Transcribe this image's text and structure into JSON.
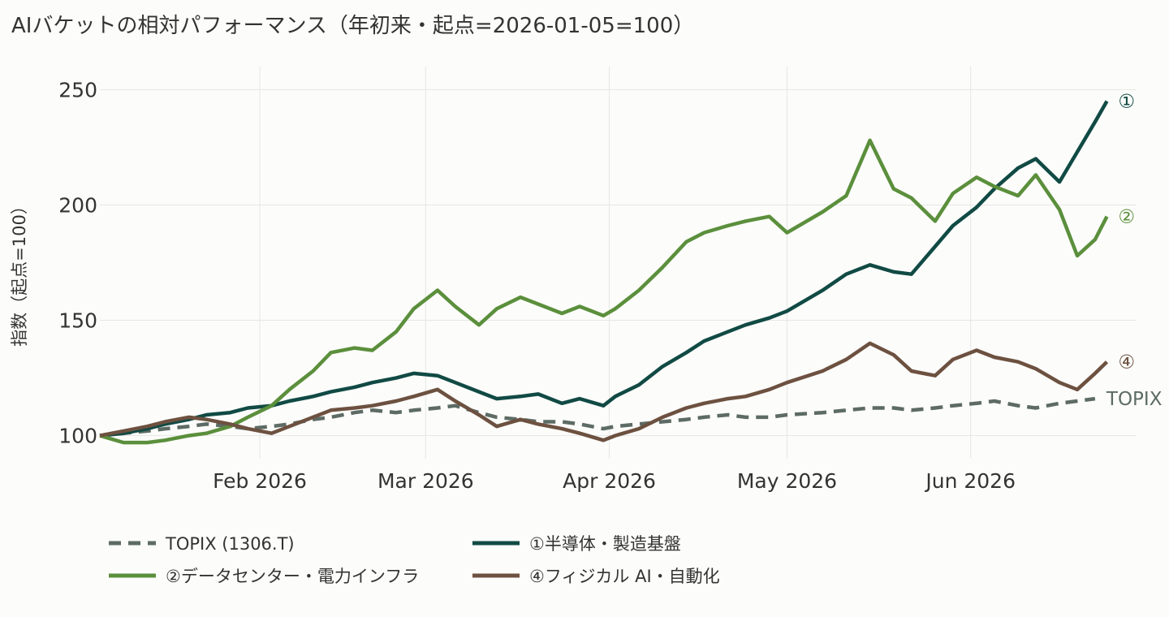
{
  "chart_data": {
    "type": "line",
    "title": "AIバケットの相対パフォーマンス（年初来・起点=2026-01-05=100）",
    "ylabel": "指数（起点=100）",
    "xlabel": "",
    "ylim": [
      90,
      260
    ],
    "yticks": [
      100,
      150,
      200,
      250
    ],
    "xlim": [
      "2026-01-05",
      "2026-06-29"
    ],
    "xticks": [
      {
        "date": "2026-02-01",
        "label": "Feb 2026"
      },
      {
        "date": "2026-03-01",
        "label": "Mar 2026"
      },
      {
        "date": "2026-04-01",
        "label": "Apr 2026"
      },
      {
        "date": "2026-05-01",
        "label": "May 2026"
      },
      {
        "date": "2026-06-01",
        "label": "Jun 2026"
      }
    ],
    "grid": true,
    "legend_position": "bottom",
    "series": [
      {
        "name": "TOPIX (1306.T)",
        "end_label": "TOPIX",
        "color": "#5d6b65",
        "dash": true,
        "points": [
          [
            "2026-01-05",
            100
          ],
          [
            "2026-01-09",
            101
          ],
          [
            "2026-01-13",
            102
          ],
          [
            "2026-01-16",
            103
          ],
          [
            "2026-01-20",
            104
          ],
          [
            "2026-01-23",
            105
          ],
          [
            "2026-01-27",
            104
          ],
          [
            "2026-01-30",
            103
          ],
          [
            "2026-02-03",
            104
          ],
          [
            "2026-02-06",
            105
          ],
          [
            "2026-02-10",
            107
          ],
          [
            "2026-02-13",
            108
          ],
          [
            "2026-02-17",
            110
          ],
          [
            "2026-02-20",
            111
          ],
          [
            "2026-02-24",
            110
          ],
          [
            "2026-02-27",
            111
          ],
          [
            "2026-03-03",
            112
          ],
          [
            "2026-03-06",
            113
          ],
          [
            "2026-03-10",
            110
          ],
          [
            "2026-03-13",
            108
          ],
          [
            "2026-03-17",
            107
          ],
          [
            "2026-03-20",
            106
          ],
          [
            "2026-03-24",
            106
          ],
          [
            "2026-03-27",
            105
          ],
          [
            "2026-03-31",
            103
          ],
          [
            "2026-04-02",
            104
          ],
          [
            "2026-04-06",
            105
          ],
          [
            "2026-04-10",
            106
          ],
          [
            "2026-04-14",
            107
          ],
          [
            "2026-04-17",
            108
          ],
          [
            "2026-04-21",
            109
          ],
          [
            "2026-04-24",
            108
          ],
          [
            "2026-04-28",
            108
          ],
          [
            "2026-05-01",
            109
          ],
          [
            "2026-05-07",
            110
          ],
          [
            "2026-05-11",
            111
          ],
          [
            "2026-05-15",
            112
          ],
          [
            "2026-05-19",
            112
          ],
          [
            "2026-05-22",
            111
          ],
          [
            "2026-05-26",
            112
          ],
          [
            "2026-05-29",
            113
          ],
          [
            "2026-06-02",
            114
          ],
          [
            "2026-06-05",
            115
          ],
          [
            "2026-06-09",
            113
          ],
          [
            "2026-06-12",
            112
          ],
          [
            "2026-06-16",
            114
          ],
          [
            "2026-06-19",
            115
          ],
          [
            "2026-06-22",
            116
          ]
        ]
      },
      {
        "name": "①半導体・製造基盤",
        "end_label": "①",
        "color": "#114a44",
        "dash": false,
        "points": [
          [
            "2026-01-05",
            100
          ],
          [
            "2026-01-09",
            101
          ],
          [
            "2026-01-13",
            103
          ],
          [
            "2026-01-16",
            105
          ],
          [
            "2026-01-20",
            107
          ],
          [
            "2026-01-23",
            109
          ],
          [
            "2026-01-27",
            110
          ],
          [
            "2026-01-30",
            112
          ],
          [
            "2026-02-03",
            113
          ],
          [
            "2026-02-06",
            115
          ],
          [
            "2026-02-10",
            117
          ],
          [
            "2026-02-13",
            119
          ],
          [
            "2026-02-17",
            121
          ],
          [
            "2026-02-20",
            123
          ],
          [
            "2026-02-24",
            125
          ],
          [
            "2026-02-27",
            127
          ],
          [
            "2026-03-03",
            126
          ],
          [
            "2026-03-06",
            123
          ],
          [
            "2026-03-10",
            119
          ],
          [
            "2026-03-13",
            116
          ],
          [
            "2026-03-17",
            117
          ],
          [
            "2026-03-20",
            118
          ],
          [
            "2026-03-24",
            114
          ],
          [
            "2026-03-27",
            116
          ],
          [
            "2026-03-31",
            113
          ],
          [
            "2026-04-02",
            117
          ],
          [
            "2026-04-06",
            122
          ],
          [
            "2026-04-10",
            130
          ],
          [
            "2026-04-14",
            136
          ],
          [
            "2026-04-17",
            141
          ],
          [
            "2026-04-21",
            145
          ],
          [
            "2026-04-24",
            148
          ],
          [
            "2026-04-28",
            151
          ],
          [
            "2026-05-01",
            154
          ],
          [
            "2026-05-07",
            163
          ],
          [
            "2026-05-11",
            170
          ],
          [
            "2026-05-15",
            174
          ],
          [
            "2026-05-19",
            171
          ],
          [
            "2026-05-22",
            170
          ],
          [
            "2026-05-26",
            182
          ],
          [
            "2026-05-29",
            191
          ],
          [
            "2026-06-02",
            199
          ],
          [
            "2026-06-05",
            207
          ],
          [
            "2026-06-09",
            216
          ],
          [
            "2026-06-12",
            220
          ],
          [
            "2026-06-16",
            210
          ],
          [
            "2026-06-19",
            223
          ],
          [
            "2026-06-22",
            236
          ],
          [
            "2026-06-24",
            245
          ]
        ]
      },
      {
        "name": "②データセンター・電力インフラ",
        "end_label": "②",
        "color": "#5b8f3c",
        "dash": false,
        "points": [
          [
            "2026-01-05",
            100
          ],
          [
            "2026-01-09",
            97
          ],
          [
            "2026-01-13",
            97
          ],
          [
            "2026-01-16",
            98
          ],
          [
            "2026-01-20",
            100
          ],
          [
            "2026-01-23",
            101
          ],
          [
            "2026-01-27",
            104
          ],
          [
            "2026-01-30",
            108
          ],
          [
            "2026-02-03",
            113
          ],
          [
            "2026-02-06",
            120
          ],
          [
            "2026-02-10",
            128
          ],
          [
            "2026-02-13",
            136
          ],
          [
            "2026-02-17",
            138
          ],
          [
            "2026-02-20",
            137
          ],
          [
            "2026-02-24",
            145
          ],
          [
            "2026-02-27",
            155
          ],
          [
            "2026-03-03",
            163
          ],
          [
            "2026-03-06",
            156
          ],
          [
            "2026-03-10",
            148
          ],
          [
            "2026-03-13",
            155
          ],
          [
            "2026-03-17",
            160
          ],
          [
            "2026-03-20",
            157
          ],
          [
            "2026-03-24",
            153
          ],
          [
            "2026-03-27",
            156
          ],
          [
            "2026-03-31",
            152
          ],
          [
            "2026-04-02",
            155
          ],
          [
            "2026-04-06",
            163
          ],
          [
            "2026-04-10",
            173
          ],
          [
            "2026-04-14",
            184
          ],
          [
            "2026-04-17",
            188
          ],
          [
            "2026-04-21",
            191
          ],
          [
            "2026-04-24",
            193
          ],
          [
            "2026-04-28",
            195
          ],
          [
            "2026-05-01",
            188
          ],
          [
            "2026-05-07",
            197
          ],
          [
            "2026-05-11",
            204
          ],
          [
            "2026-05-15",
            228
          ],
          [
            "2026-05-19",
            207
          ],
          [
            "2026-05-22",
            203
          ],
          [
            "2026-05-26",
            193
          ],
          [
            "2026-05-29",
            205
          ],
          [
            "2026-06-02",
            212
          ],
          [
            "2026-06-05",
            208
          ],
          [
            "2026-06-09",
            204
          ],
          [
            "2026-06-12",
            213
          ],
          [
            "2026-06-16",
            198
          ],
          [
            "2026-06-19",
            178
          ],
          [
            "2026-06-22",
            185
          ],
          [
            "2026-06-24",
            195
          ]
        ]
      },
      {
        "name": "④フィジカル AI・自動化",
        "end_label": "④",
        "color": "#6d5140",
        "dash": false,
        "points": [
          [
            "2026-01-05",
            100
          ],
          [
            "2026-01-09",
            102
          ],
          [
            "2026-01-13",
            104
          ],
          [
            "2026-01-16",
            106
          ],
          [
            "2026-01-20",
            108
          ],
          [
            "2026-01-23",
            107
          ],
          [
            "2026-01-27",
            105
          ],
          [
            "2026-01-30",
            103
          ],
          [
            "2026-02-03",
            101
          ],
          [
            "2026-02-06",
            104
          ],
          [
            "2026-02-10",
            108
          ],
          [
            "2026-02-13",
            111
          ],
          [
            "2026-02-17",
            112
          ],
          [
            "2026-02-20",
            113
          ],
          [
            "2026-02-24",
            115
          ],
          [
            "2026-02-27",
            117
          ],
          [
            "2026-03-03",
            120
          ],
          [
            "2026-03-06",
            115
          ],
          [
            "2026-03-10",
            109
          ],
          [
            "2026-03-13",
            104
          ],
          [
            "2026-03-17",
            107
          ],
          [
            "2026-03-20",
            105
          ],
          [
            "2026-03-24",
            103
          ],
          [
            "2026-03-27",
            101
          ],
          [
            "2026-03-31",
            98
          ],
          [
            "2026-04-02",
            100
          ],
          [
            "2026-04-06",
            103
          ],
          [
            "2026-04-10",
            108
          ],
          [
            "2026-04-14",
            112
          ],
          [
            "2026-04-17",
            114
          ],
          [
            "2026-04-21",
            116
          ],
          [
            "2026-04-24",
            117
          ],
          [
            "2026-04-28",
            120
          ],
          [
            "2026-05-01",
            123
          ],
          [
            "2026-05-07",
            128
          ],
          [
            "2026-05-11",
            133
          ],
          [
            "2026-05-15",
            140
          ],
          [
            "2026-05-19",
            135
          ],
          [
            "2026-05-22",
            128
          ],
          [
            "2026-05-26",
            126
          ],
          [
            "2026-05-29",
            133
          ],
          [
            "2026-06-02",
            137
          ],
          [
            "2026-06-05",
            134
          ],
          [
            "2026-06-09",
            132
          ],
          [
            "2026-06-12",
            129
          ],
          [
            "2026-06-16",
            123
          ],
          [
            "2026-06-19",
            120
          ],
          [
            "2026-06-22",
            127
          ],
          [
            "2026-06-24",
            132
          ]
        ]
      }
    ]
  }
}
